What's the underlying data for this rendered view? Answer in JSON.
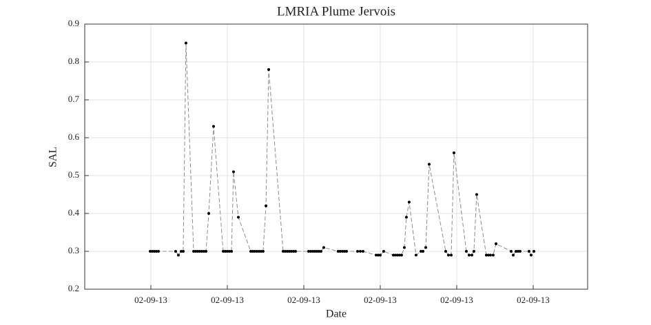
{
  "chart_data": {
    "type": "line",
    "title": "LMRIA Plume Jervois",
    "x_label": "Date",
    "y_label": "SAL",
    "xlim": [
      0.135,
      6.712
    ],
    "xticks": [
      {
        "value": 1,
        "label": "02-09-13"
      },
      {
        "value": 2,
        "label": "02-09-13"
      },
      {
        "value": 3,
        "label": "02-09-13"
      },
      {
        "value": 4,
        "label": "02-09-13"
      },
      {
        "value": 5,
        "label": "02-09-13"
      },
      {
        "value": 6,
        "label": "02-09-13"
      }
    ],
    "ylim": [
      0.2,
      0.9
    ],
    "yticks": [
      0.2,
      0.3,
      0.4,
      0.5,
      0.6,
      0.7,
      0.8,
      0.9
    ],
    "grid": true,
    "series": [
      {
        "color": "#000000",
        "line_color": "#8c8c8c",
        "line_style": "dashed",
        "x": [
          0.991,
          1.018,
          1.045,
          1.072,
          1.099,
          1.324,
          1.36,
          1.396,
          1.423,
          1.459,
          1.559,
          1.586,
          1.613,
          1.64,
          1.667,
          1.694,
          1.721,
          1.757,
          1.82,
          1.946,
          1.973,
          2.0,
          2.027,
          2.054,
          2.081,
          2.144,
          2.306,
          2.333,
          2.36,
          2.387,
          2.414,
          2.441,
          2.468,
          2.505,
          2.541,
          2.73,
          2.757,
          2.784,
          2.811,
          2.838,
          2.865,
          2.892,
          3.063,
          3.09,
          3.117,
          3.144,
          3.171,
          3.198,
          3.225,
          3.261,
          3.45,
          3.477,
          3.505,
          3.532,
          3.559,
          3.703,
          3.739,
          3.775,
          3.946,
          3.973,
          4.0,
          4.045,
          4.171,
          4.198,
          4.225,
          4.252,
          4.279,
          4.315,
          4.342,
          4.378,
          4.468,
          4.532,
          4.559,
          4.595,
          4.64,
          4.856,
          4.892,
          4.928,
          4.964,
          5.126,
          5.162,
          5.198,
          5.225,
          5.261,
          5.387,
          5.414,
          5.441,
          5.477,
          5.514,
          5.712,
          5.739,
          5.775,
          5.802,
          5.829,
          5.946,
          5.973,
          6.009
        ],
        "values": [
          0.3,
          0.3,
          0.3,
          0.3,
          0.3,
          0.3,
          0.29,
          0.3,
          0.3,
          0.85,
          0.3,
          0.3,
          0.3,
          0.3,
          0.3,
          0.3,
          0.3,
          0.4,
          0.63,
          0.3,
          0.3,
          0.3,
          0.3,
          0.3,
          0.51,
          0.39,
          0.3,
          0.3,
          0.3,
          0.3,
          0.3,
          0.3,
          0.3,
          0.42,
          0.78,
          0.3,
          0.3,
          0.3,
          0.3,
          0.3,
          0.3,
          0.3,
          0.3,
          0.3,
          0.3,
          0.3,
          0.3,
          0.3,
          0.3,
          0.31,
          0.3,
          0.3,
          0.3,
          0.3,
          0.3,
          0.3,
          0.3,
          0.3,
          0.29,
          0.29,
          0.29,
          0.3,
          0.29,
          0.29,
          0.29,
          0.29,
          0.29,
          0.31,
          0.39,
          0.43,
          0.29,
          0.3,
          0.3,
          0.31,
          0.53,
          0.3,
          0.29,
          0.29,
          0.56,
          0.3,
          0.29,
          0.29,
          0.3,
          0.45,
          0.29,
          0.29,
          0.29,
          0.29,
          0.32,
          0.3,
          0.29,
          0.3,
          0.3,
          0.3,
          0.3,
          0.29,
          0.3
        ]
      }
    ]
  }
}
